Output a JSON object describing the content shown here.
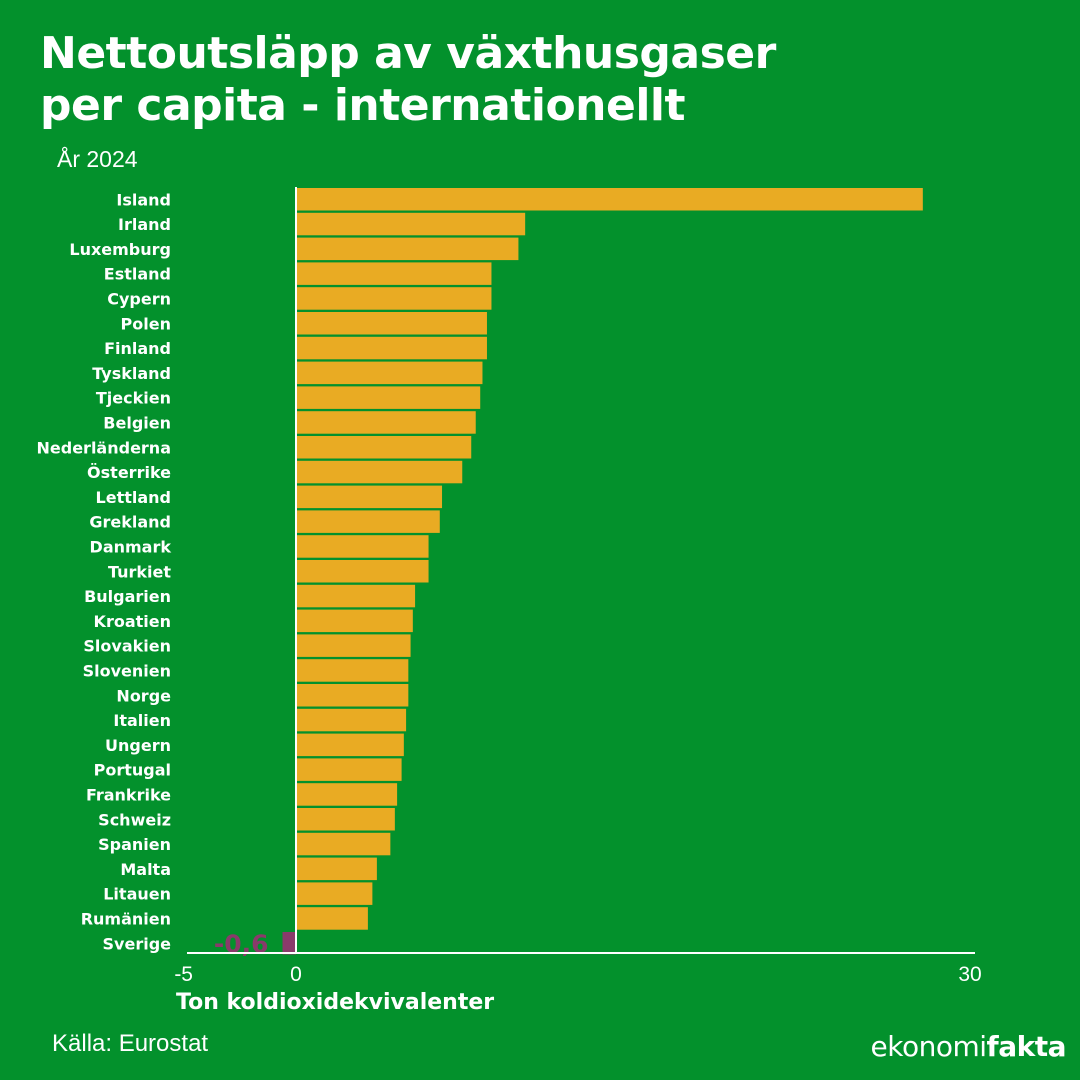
{
  "header": {
    "title_line1": "Nettoutsläpp av växthusgaser",
    "title_line2": "per capita - internationellt",
    "subtitle": "År 2024"
  },
  "footer": {
    "source": "Källa: Eurostat",
    "logo_part1": "ekonomi",
    "logo_part2": "fakta"
  },
  "colors": {
    "background": "#03912c",
    "bar": "#e9ab23",
    "negative_bar": "#8a3a6b",
    "text": "#ffffff"
  },
  "chart_data": {
    "type": "bar",
    "orientation": "horizontal",
    "title": "Nettoutsläpp av växthusgaser per capita - internationellt",
    "subtitle": "År 2024",
    "xlabel": "Ton koldioxidekvivalenter",
    "ylabel": "",
    "xlim": [
      -5,
      30
    ],
    "xticks": [
      -5,
      0,
      30
    ],
    "xtick_labels": [
      "-5",
      "0",
      "30"
    ],
    "categories": [
      "Island",
      "Irland",
      "Luxemburg",
      "Estland",
      "Cypern",
      "Polen",
      "Finland",
      "Tyskland",
      "Tjeckien",
      "Belgien",
      "Nederländerna",
      "Österrike",
      "Lettland",
      "Grekland",
      "Danmark",
      "Turkiet",
      "Bulgarien",
      "Kroatien",
      "Slovakien",
      "Slovenien",
      "Norge",
      "Italien",
      "Ungern",
      "Portugal",
      "Frankrike",
      "Schweiz",
      "Spanien",
      "Malta",
      "Litauen",
      "Rumänien",
      "Sverige"
    ],
    "values": [
      27.9,
      10.2,
      9.9,
      8.7,
      8.7,
      8.5,
      8.5,
      8.3,
      8.2,
      8.0,
      7.8,
      7.4,
      6.5,
      6.4,
      5.9,
      5.9,
      5.3,
      5.2,
      5.1,
      5.0,
      5.0,
      4.9,
      4.8,
      4.7,
      4.5,
      4.4,
      4.2,
      3.6,
      3.4,
      3.2,
      -0.6
    ],
    "data_labels": [
      {
        "category": "Sverige",
        "text": "-0,6"
      }
    ],
    "grid": false,
    "legend": "none"
  }
}
